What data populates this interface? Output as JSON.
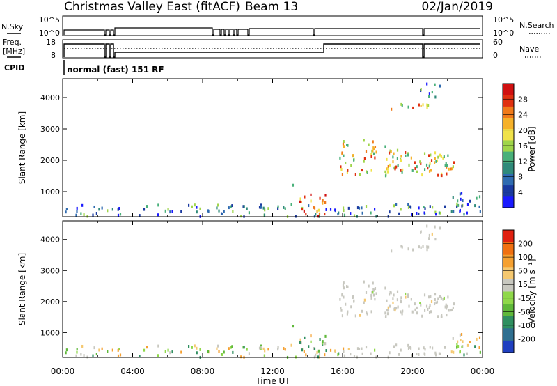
{
  "header": {
    "radar": "Christmas Valley East (fitACF)",
    "beam": "Beam 13",
    "date": "02/Jan/2019"
  },
  "params": {
    "nsky_label": "N.Sky",
    "nsky_ticks": [
      "10^5",
      "10^0"
    ],
    "nsearch_label": "N.Search",
    "nsearch_ticks": [
      "10^5",
      "10^0"
    ],
    "freq_label_1": "Freq.",
    "freq_label_2": "[MHz]",
    "freq_ticks": [
      "18",
      "8"
    ],
    "nave_label": "Nave",
    "nave_ticks": [
      "60",
      "0"
    ],
    "cpid_label": "CPID",
    "cpid_value": "normal (fast) 151 RF"
  },
  "colors": {
    "power": [
      "#1a1aff",
      "#1a3aa0",
      "#2f6bb0",
      "#2f8a7a",
      "#49b07a",
      "#9fd54a",
      "#f0e24a",
      "#f5b12a",
      "#f07a1a",
      "#e03010",
      "#d01010"
    ],
    "velocity": [
      "#1f3fc0",
      "#2f6f90",
      "#2f8f60",
      "#5fb83a",
      "#8fd84a",
      "#c8c8c0",
      "#f5c870",
      "#f5a030",
      "#f07010",
      "#e02010"
    ]
  },
  "chart_data": [
    {
      "type": "heatmap",
      "name": "power",
      "ylabel": "Slant Range [km]",
      "xlabel": "",
      "yticks": [
        "4000",
        "3000",
        "2000",
        "1000"
      ],
      "ylim": [
        200,
        4600
      ],
      "xlim_hours": [
        0,
        24
      ],
      "colorbar_label": "Power [dB]",
      "colorbar_ticks": [
        "28",
        "24",
        "20",
        "16",
        "12",
        "8",
        "4"
      ],
      "colorbar_range": [
        0,
        30
      ],
      "echo_regions": [
        {
          "t0": 0.0,
          "t1": 24.0,
          "r0": 200,
          "r1": 600,
          "level": "low"
        },
        {
          "t0": 13.3,
          "t1": 15.0,
          "r0": 200,
          "r1": 900,
          "level": "high"
        },
        {
          "t0": 13.0,
          "t1": 13.5,
          "r0": 1050,
          "r1": 1250,
          "level": "low"
        },
        {
          "t0": 15.8,
          "t1": 22.4,
          "r0": 1500,
          "r1": 2700,
          "level": "mid"
        },
        {
          "t0": 18.7,
          "t1": 21.5,
          "r0": 3600,
          "r1": 3800,
          "level": "mid"
        },
        {
          "t0": 20.3,
          "t1": 21.6,
          "r0": 4000,
          "r1": 4500,
          "level": "low"
        },
        {
          "t0": 22.0,
          "t1": 24.0,
          "r0": 400,
          "r1": 950,
          "level": "low"
        }
      ]
    },
    {
      "type": "heatmap",
      "name": "velocity",
      "ylabel": "Slant Range [km]",
      "xlabel": "Time UT",
      "yticks": [
        "4000",
        "3000",
        "2000",
        "1000"
      ],
      "ylim": [
        200,
        4600
      ],
      "xlim_hours": [
        0,
        24
      ],
      "xticks": [
        "00:00",
        "04:00",
        "08:00",
        "12:00",
        "16:00",
        "20:00",
        "00:00"
      ],
      "colorbar_label": "Velocity [m s⁻¹]",
      "colorbar_ticks": [
        "200",
        "100",
        "50",
        "15",
        "-15",
        "-50",
        "-100",
        "-200"
      ],
      "colorbar_range": [
        -250,
        250
      ]
    }
  ]
}
